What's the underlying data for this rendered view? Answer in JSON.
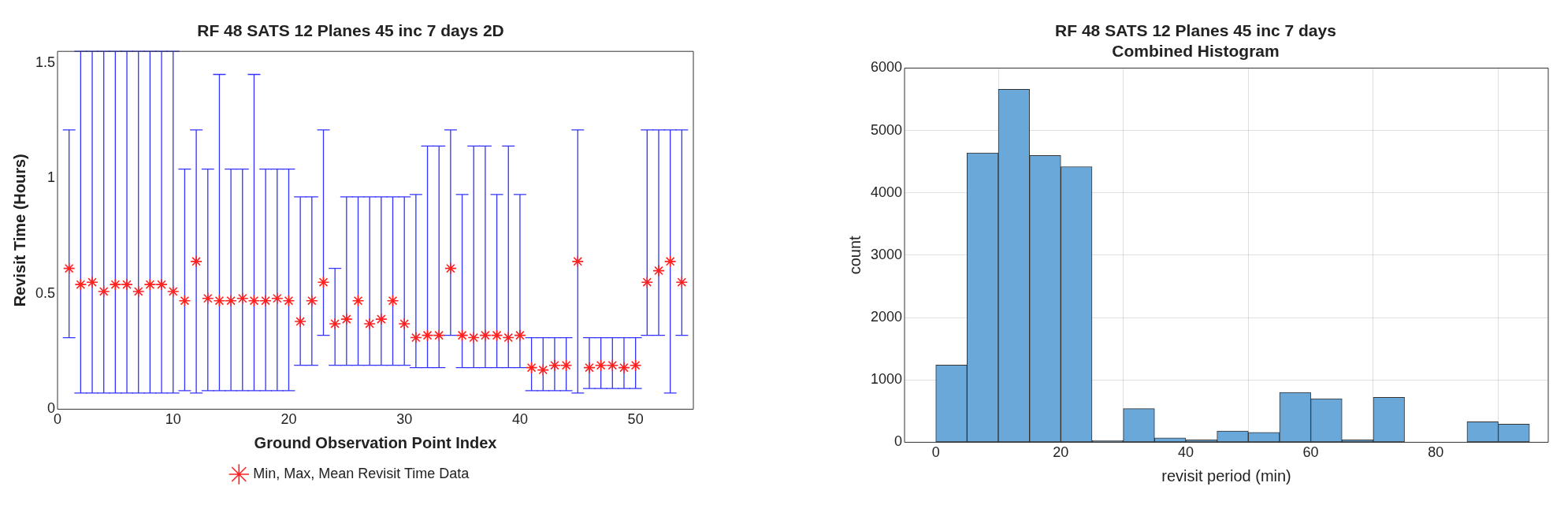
{
  "chart_data": [
    {
      "type": "scatter",
      "title": "RF 48 SATS 12 Planes 45 inc 7 days 2D",
      "xlabel": "Ground Observation Point Index",
      "ylabel": "Revisit Time (Hours)",
      "legend": "bottom",
      "marker": "cross",
      "xlim": [
        0,
        55
      ],
      "xticks": [
        0,
        10,
        20,
        30,
        40,
        50
      ],
      "ylim": [
        0,
        1.55
      ],
      "yticks": [
        0,
        0.5,
        1,
        1.5
      ],
      "series": [
        {
          "name": "Min, Max, Mean Revisit Time Data",
          "color": "#ff2020",
          "x": [
            1,
            2,
            3,
            4,
            5,
            6,
            7,
            8,
            9,
            10,
            11,
            12,
            13,
            14,
            15,
            16,
            17,
            18,
            19,
            20,
            21,
            22,
            23,
            24,
            25,
            26,
            27,
            28,
            29,
            30,
            31,
            32,
            33,
            34,
            35,
            36,
            37,
            38,
            39,
            40,
            41,
            42,
            43,
            44,
            45,
            46,
            47,
            48,
            49,
            50,
            51,
            52,
            53,
            54
          ],
          "values": [
            0.61,
            0.54,
            0.55,
            0.51,
            0.54,
            0.54,
            0.51,
            0.54,
            0.54,
            0.51,
            0.47,
            0.64,
            0.48,
            0.47,
            0.47,
            0.48,
            0.47,
            0.47,
            0.48,
            0.47,
            0.38,
            0.47,
            0.55,
            0.37,
            0.39,
            0.47,
            0.37,
            0.39,
            0.47,
            0.37,
            0.31,
            0.32,
            0.32,
            0.61,
            0.32,
            0.31,
            0.32,
            0.32,
            0.31,
            0.32,
            0.18,
            0.17,
            0.19,
            0.19,
            0.64,
            0.18,
            0.19,
            0.19,
            0.18,
            0.19,
            0.55,
            0.6,
            0.64,
            0.55
          ],
          "errors": [
            [
              0.31,
              1.21
            ],
            [
              0.07,
              1.55
            ],
            [
              0.07,
              1.55
            ],
            [
              0.07,
              1.55
            ],
            [
              0.07,
              1.55
            ],
            [
              0.07,
              1.55
            ],
            [
              0.07,
              1.55
            ],
            [
              0.07,
              1.55
            ],
            [
              0.07,
              1.55
            ],
            [
              0.07,
              1.55
            ],
            [
              0.08,
              1.04
            ],
            [
              0.07,
              1.21
            ],
            [
              0.08,
              1.04
            ],
            [
              0.08,
              1.45
            ],
            [
              0.08,
              1.04
            ],
            [
              0.08,
              1.04
            ],
            [
              0.08,
              1.45
            ],
            [
              0.08,
              1.04
            ],
            [
              0.08,
              1.04
            ],
            [
              0.08,
              1.04
            ],
            [
              0.19,
              0.92
            ],
            [
              0.19,
              0.92
            ],
            [
              0.32,
              1.21
            ],
            [
              0.19,
              0.61
            ],
            [
              0.19,
              0.92
            ],
            [
              0.19,
              0.92
            ],
            [
              0.19,
              0.92
            ],
            [
              0.19,
              0.92
            ],
            [
              0.19,
              0.92
            ],
            [
              0.19,
              0.92
            ],
            [
              0.18,
              0.93
            ],
            [
              0.18,
              1.14
            ],
            [
              0.18,
              1.14
            ],
            [
              0.32,
              1.21
            ],
            [
              0.18,
              0.93
            ],
            [
              0.18,
              1.14
            ],
            [
              0.18,
              1.14
            ],
            [
              0.18,
              0.93
            ],
            [
              0.18,
              1.14
            ],
            [
              0.18,
              0.93
            ],
            [
              0.08,
              0.31
            ],
            [
              0.08,
              0.31
            ],
            [
              0.08,
              0.31
            ],
            [
              0.08,
              0.31
            ],
            [
              0.07,
              1.21
            ],
            [
              0.09,
              0.31
            ],
            [
              0.09,
              0.31
            ],
            [
              0.09,
              0.31
            ],
            [
              0.09,
              0.31
            ],
            [
              0.09,
              0.31
            ],
            [
              0.32,
              1.21
            ],
            [
              0.32,
              1.21
            ],
            [
              0.07,
              1.21
            ],
            [
              0.32,
              1.21
            ]
          ]
        }
      ]
    },
    {
      "type": "histogram",
      "title": "RF 48 SATS 12 Planes 45 inc 7 days",
      "subtitle": "Combined Histogram",
      "xlabel": "revisit period (min)",
      "ylabel": "count",
      "grid": true,
      "color": "#6aa8d9",
      "bins": [
        0,
        5,
        10,
        15,
        20,
        25,
        30,
        35,
        40,
        45,
        50,
        55,
        60,
        65,
        70,
        75,
        80,
        85,
        90,
        95
      ],
      "values": [
        1240,
        4640,
        5660,
        4600,
        4420,
        30,
        540,
        70,
        40,
        180,
        160,
        800,
        700,
        40,
        720,
        0,
        0,
        330,
        290
      ],
      "xlim": [
        -5,
        98
      ],
      "xticks": [
        0,
        20,
        40,
        60,
        80
      ],
      "ylim": [
        0,
        6000
      ],
      "yticks": [
        0,
        1000,
        2000,
        3000,
        4000,
        5000,
        6000
      ]
    }
  ]
}
